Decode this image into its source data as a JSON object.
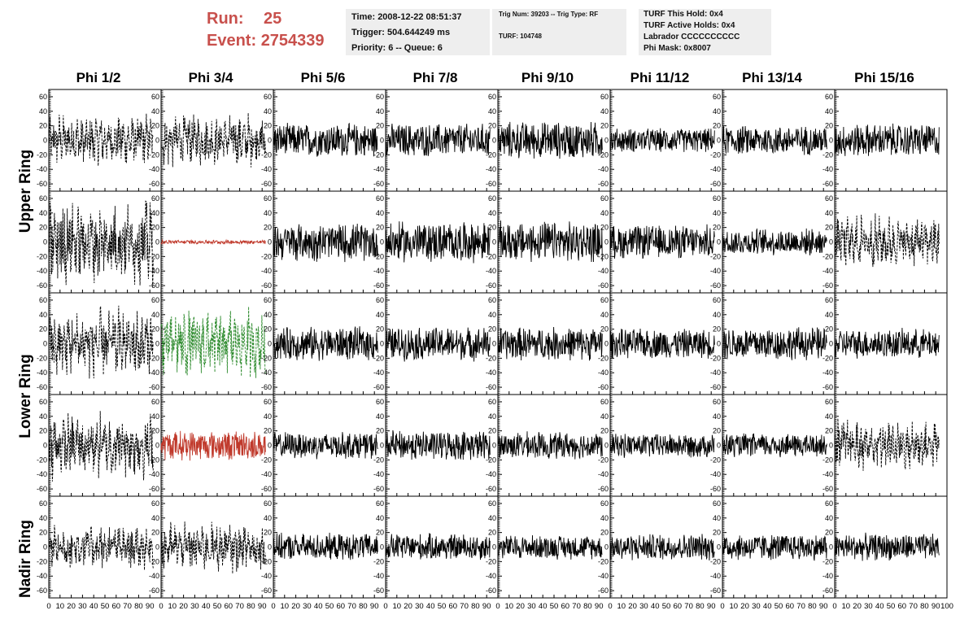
{
  "run": {
    "run_label": "Run:",
    "run_value": "25",
    "event_label": "Event:",
    "event_value": "2754339"
  },
  "info1": {
    "time": "Time: 2008-12-22 08:51:37",
    "trigger": "Trigger: 504.644249 ms",
    "priority": "Priority: 6 -- Queue: 6"
  },
  "info2": {
    "trig": "Trig Num: 39203 -- Trig Type: RF",
    "turf": "TURF: 104748"
  },
  "info3": {
    "hold": "TURF This Hold: 0x4",
    "active": "TURF Active Holds: 0x4",
    "labrador": "Labrador CCCCCCCCCC",
    "phimask": "Phi Mask: 0x8007"
  },
  "columns": [
    "Phi 1/2",
    "Phi 3/4",
    "Phi 5/6",
    "Phi 7/8",
    "Phi 9/10",
    "Phi 11/12",
    "Phi 13/14",
    "Phi 15/16"
  ],
  "ring_labels": {
    "upper": "Upper Ring",
    "lower": "Lower Ring",
    "nadir": "Nadir Ring"
  },
  "colors": {
    "title": "#c8504c",
    "trace": "#000000",
    "red_trace": "#c0392b",
    "green_trace": "#2e8b2e",
    "info_bg": "#eeeeee"
  },
  "chart_data": {
    "type": "line",
    "panel_grid": {
      "rows": 5,
      "cols": 8
    },
    "xlim": [
      0,
      100
    ],
    "ylim": [
      -70,
      70
    ],
    "x_ticks": [
      0,
      10,
      20,
      30,
      40,
      50,
      60,
      70,
      80,
      90,
      100
    ],
    "x_tick_labels": [
      "0",
      "10",
      "20",
      "30",
      "40",
      "50",
      "60",
      "70",
      "80",
      "90",
      "100"
    ],
    "y_ticks": [
      -60,
      -40,
      -20,
      0,
      20,
      40,
      60
    ],
    "y_tick_labels": [
      "-60",
      "-40",
      "-20",
      "0",
      "20",
      "40",
      "60"
    ],
    "trace_x_range": [
      0,
      93
    ],
    "panel_styles": [
      [
        "dashed",
        "dashed",
        "solid",
        "solid",
        "solid",
        "solid",
        "solid",
        "solid"
      ],
      [
        "dashed",
        "solid",
        "solid",
        "solid",
        "solid",
        "solid",
        "solid",
        "dashed"
      ],
      [
        "dashed",
        "dashed",
        "solid",
        "solid",
        "solid",
        "solid",
        "solid",
        "solid"
      ],
      [
        "dashed",
        "solid",
        "solid",
        "solid",
        "solid",
        "solid",
        "solid",
        "dashed"
      ],
      [
        "dashed",
        "dashed",
        "solid",
        "solid",
        "solid",
        "solid",
        "solid",
        "solid"
      ]
    ],
    "panel_colors": [
      [
        "black",
        "black",
        "black",
        "black",
        "black",
        "black",
        "black",
        "black"
      ],
      [
        "black",
        "red",
        "black",
        "black",
        "black",
        "black",
        "black",
        "black"
      ],
      [
        "black",
        "green",
        "black",
        "black",
        "black",
        "black",
        "black",
        "black"
      ],
      [
        "black",
        "red",
        "black",
        "black",
        "black",
        "black",
        "black",
        "black"
      ],
      [
        "black",
        "black",
        "black",
        "black",
        "black",
        "black",
        "black",
        "black"
      ]
    ],
    "panel_amplitudes": [
      [
        30,
        30,
        25,
        25,
        28,
        18,
        22,
        25
      ],
      [
        50,
        3,
        28,
        30,
        30,
        25,
        20,
        30
      ],
      [
        40,
        40,
        25,
        25,
        25,
        22,
        25,
        22
      ],
      [
        38,
        22,
        20,
        22,
        20,
        18,
        18,
        30
      ],
      [
        25,
        28,
        20,
        20,
        18,
        20,
        20,
        20
      ]
    ]
  }
}
